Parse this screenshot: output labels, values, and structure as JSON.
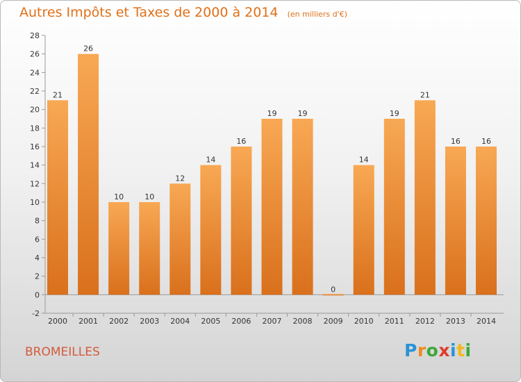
{
  "chart_data": {
    "type": "bar",
    "title": "Autres Impôts et Taxes de 2000 à 2014",
    "subtitle": "(en milliers d'€)",
    "categories": [
      "2000",
      "2001",
      "2002",
      "2003",
      "2004",
      "2005",
      "2006",
      "2007",
      "2008",
      "2009",
      "2010",
      "2011",
      "2012",
      "2013",
      "2014"
    ],
    "values": [
      21,
      26,
      10,
      10,
      12,
      14,
      16,
      19,
      19,
      0,
      14,
      19,
      21,
      16,
      16
    ],
    "ylim": [
      -2,
      28
    ],
    "yticks": [
      -2,
      0,
      2,
      4,
      6,
      8,
      10,
      12,
      14,
      16,
      18,
      20,
      22,
      24,
      26,
      28
    ],
    "grid": false,
    "bar_color_top": "#f8a854",
    "bar_color_bottom": "#d9701c"
  },
  "footer": {
    "commune": "BROMEILLES",
    "logo_letters": [
      {
        "char": "P",
        "color": "#2a93d5"
      },
      {
        "char": "r",
        "color": "#f08a1c"
      },
      {
        "char": "o",
        "color": "#3aa83a"
      },
      {
        "char": "x",
        "color": "#e03c2c"
      },
      {
        "char": "i",
        "color": "#2a93d5"
      },
      {
        "char": "t",
        "color": "#f0b81c"
      },
      {
        "char": "i",
        "color": "#3aa83a"
      }
    ]
  }
}
